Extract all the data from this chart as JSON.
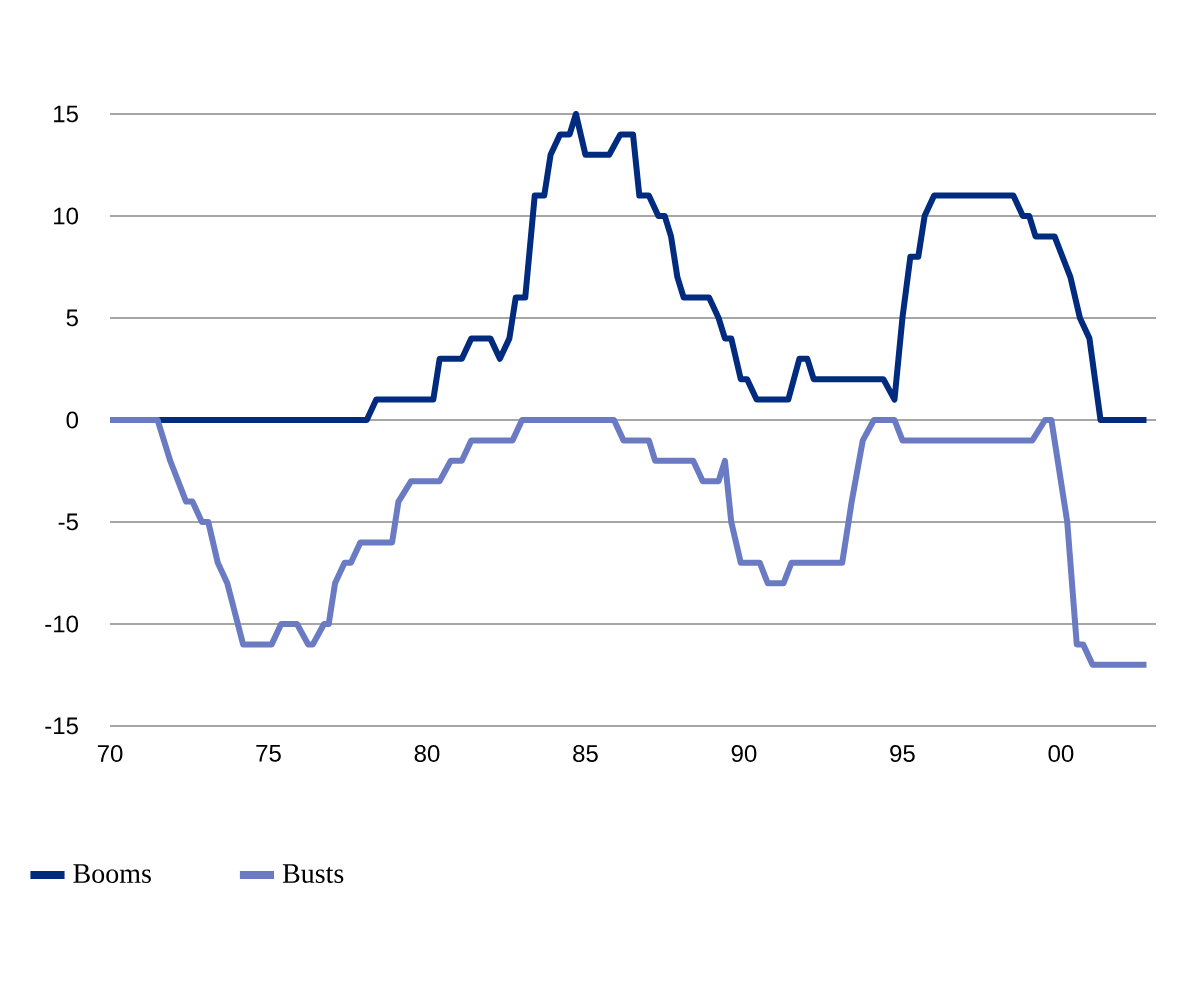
{
  "chart_data": {
    "type": "line",
    "xlim": [
      1970,
      2003
    ],
    "ylim": [
      -15,
      15
    ],
    "xticks": [
      {
        "value": 1970,
        "label": "70"
      },
      {
        "value": 1975,
        "label": "75"
      },
      {
        "value": 1980,
        "label": "80"
      },
      {
        "value": 1985,
        "label": "85"
      },
      {
        "value": 1990,
        "label": "90"
      },
      {
        "value": 1995,
        "label": "95"
      },
      {
        "value": 2000,
        "label": "00"
      }
    ],
    "yticks": [
      15,
      10,
      5,
      0,
      -5,
      -10,
      -15
    ],
    "grid": "y",
    "legend": "bottom",
    "marker": "none",
    "line_style": "solid",
    "series": [
      {
        "name": "Booms",
        "color": "#002b7f",
        "x": [
          1970,
          1978.1,
          1978.4,
          1980.2,
          1980.4,
          1981.1,
          1981.4,
          1982.0,
          1982.3,
          1982.6,
          1982.8,
          1983.1,
          1983.4,
          1983.7,
          1983.9,
          1984.2,
          1984.5,
          1984.7,
          1985.0,
          1985.75,
          1986.1,
          1986.5,
          1986.7,
          1987.0,
          1987.3,
          1987.5,
          1987.7,
          1987.9,
          1988.1,
          1988.9,
          1989.2,
          1989.4,
          1989.6,
          1989.9,
          1990.1,
          1990.4,
          1991.4,
          1991.75,
          1992.0,
          1992.2,
          1994.4,
          1994.75,
          1995.0,
          1995.25,
          1995.5,
          1995.7,
          1996.0,
          1998.5,
          1998.8,
          1999.0,
          1999.2,
          1999.8,
          2000.3,
          2000.6,
          2000.9,
          2001.25,
          2002.7
        ],
        "values": [
          0,
          0,
          1,
          1,
          3,
          3,
          4,
          4,
          3,
          4,
          6,
          6,
          11,
          11,
          13,
          14,
          14,
          15,
          13,
          13,
          14,
          14,
          11,
          11,
          10,
          10,
          9,
          7,
          6,
          6,
          5,
          4,
          4,
          2,
          2,
          1,
          1,
          3,
          3,
          2,
          2,
          1,
          5,
          8,
          8,
          10,
          11,
          11,
          10,
          10,
          9,
          9,
          7,
          5,
          4,
          0,
          0
        ]
      },
      {
        "name": "Busts",
        "color": "#6a7bc3",
        "x": [
          1970,
          1971.5,
          1971.9,
          1972.4,
          1972.6,
          1972.9,
          1973.1,
          1973.4,
          1973.7,
          1974.2,
          1975.1,
          1975.4,
          1975.9,
          1976.25,
          1976.4,
          1976.75,
          1976.9,
          1977.1,
          1977.4,
          1977.6,
          1977.9,
          1978.9,
          1979.1,
          1979.5,
          1980.4,
          1980.75,
          1981.1,
          1981.4,
          1982.7,
          1983.0,
          1985.9,
          1986.2,
          1987.0,
          1987.2,
          1988.4,
          1988.7,
          1989.2,
          1989.4,
          1989.6,
          1989.9,
          1990.5,
          1990.75,
          1991.25,
          1991.5,
          1993.1,
          1993.4,
          1993.75,
          1994.1,
          1994.75,
          1995.0,
          1999.1,
          1999.5,
          1999.7,
          1999.9,
          2000.2,
          2000.5,
          2000.7,
          2001.0,
          2002.7
        ],
        "values": [
          0,
          0,
          -2,
          -4,
          -4,
          -5,
          -5,
          -7,
          -8,
          -11,
          -11,
          -10,
          -10,
          -11,
          -11,
          -10,
          -10,
          -8,
          -7,
          -7,
          -6,
          -6,
          -4,
          -3,
          -3,
          -2,
          -2,
          -1,
          -1,
          0,
          0,
          -1,
          -1,
          -2,
          -2,
          -3,
          -3,
          -2,
          -5,
          -7,
          -7,
          -8,
          -8,
          -7,
          -7,
          -4,
          -1,
          0,
          0,
          -1,
          -1,
          0,
          0,
          -2,
          -5,
          -11,
          -11,
          -12,
          -12
        ]
      }
    ]
  }
}
